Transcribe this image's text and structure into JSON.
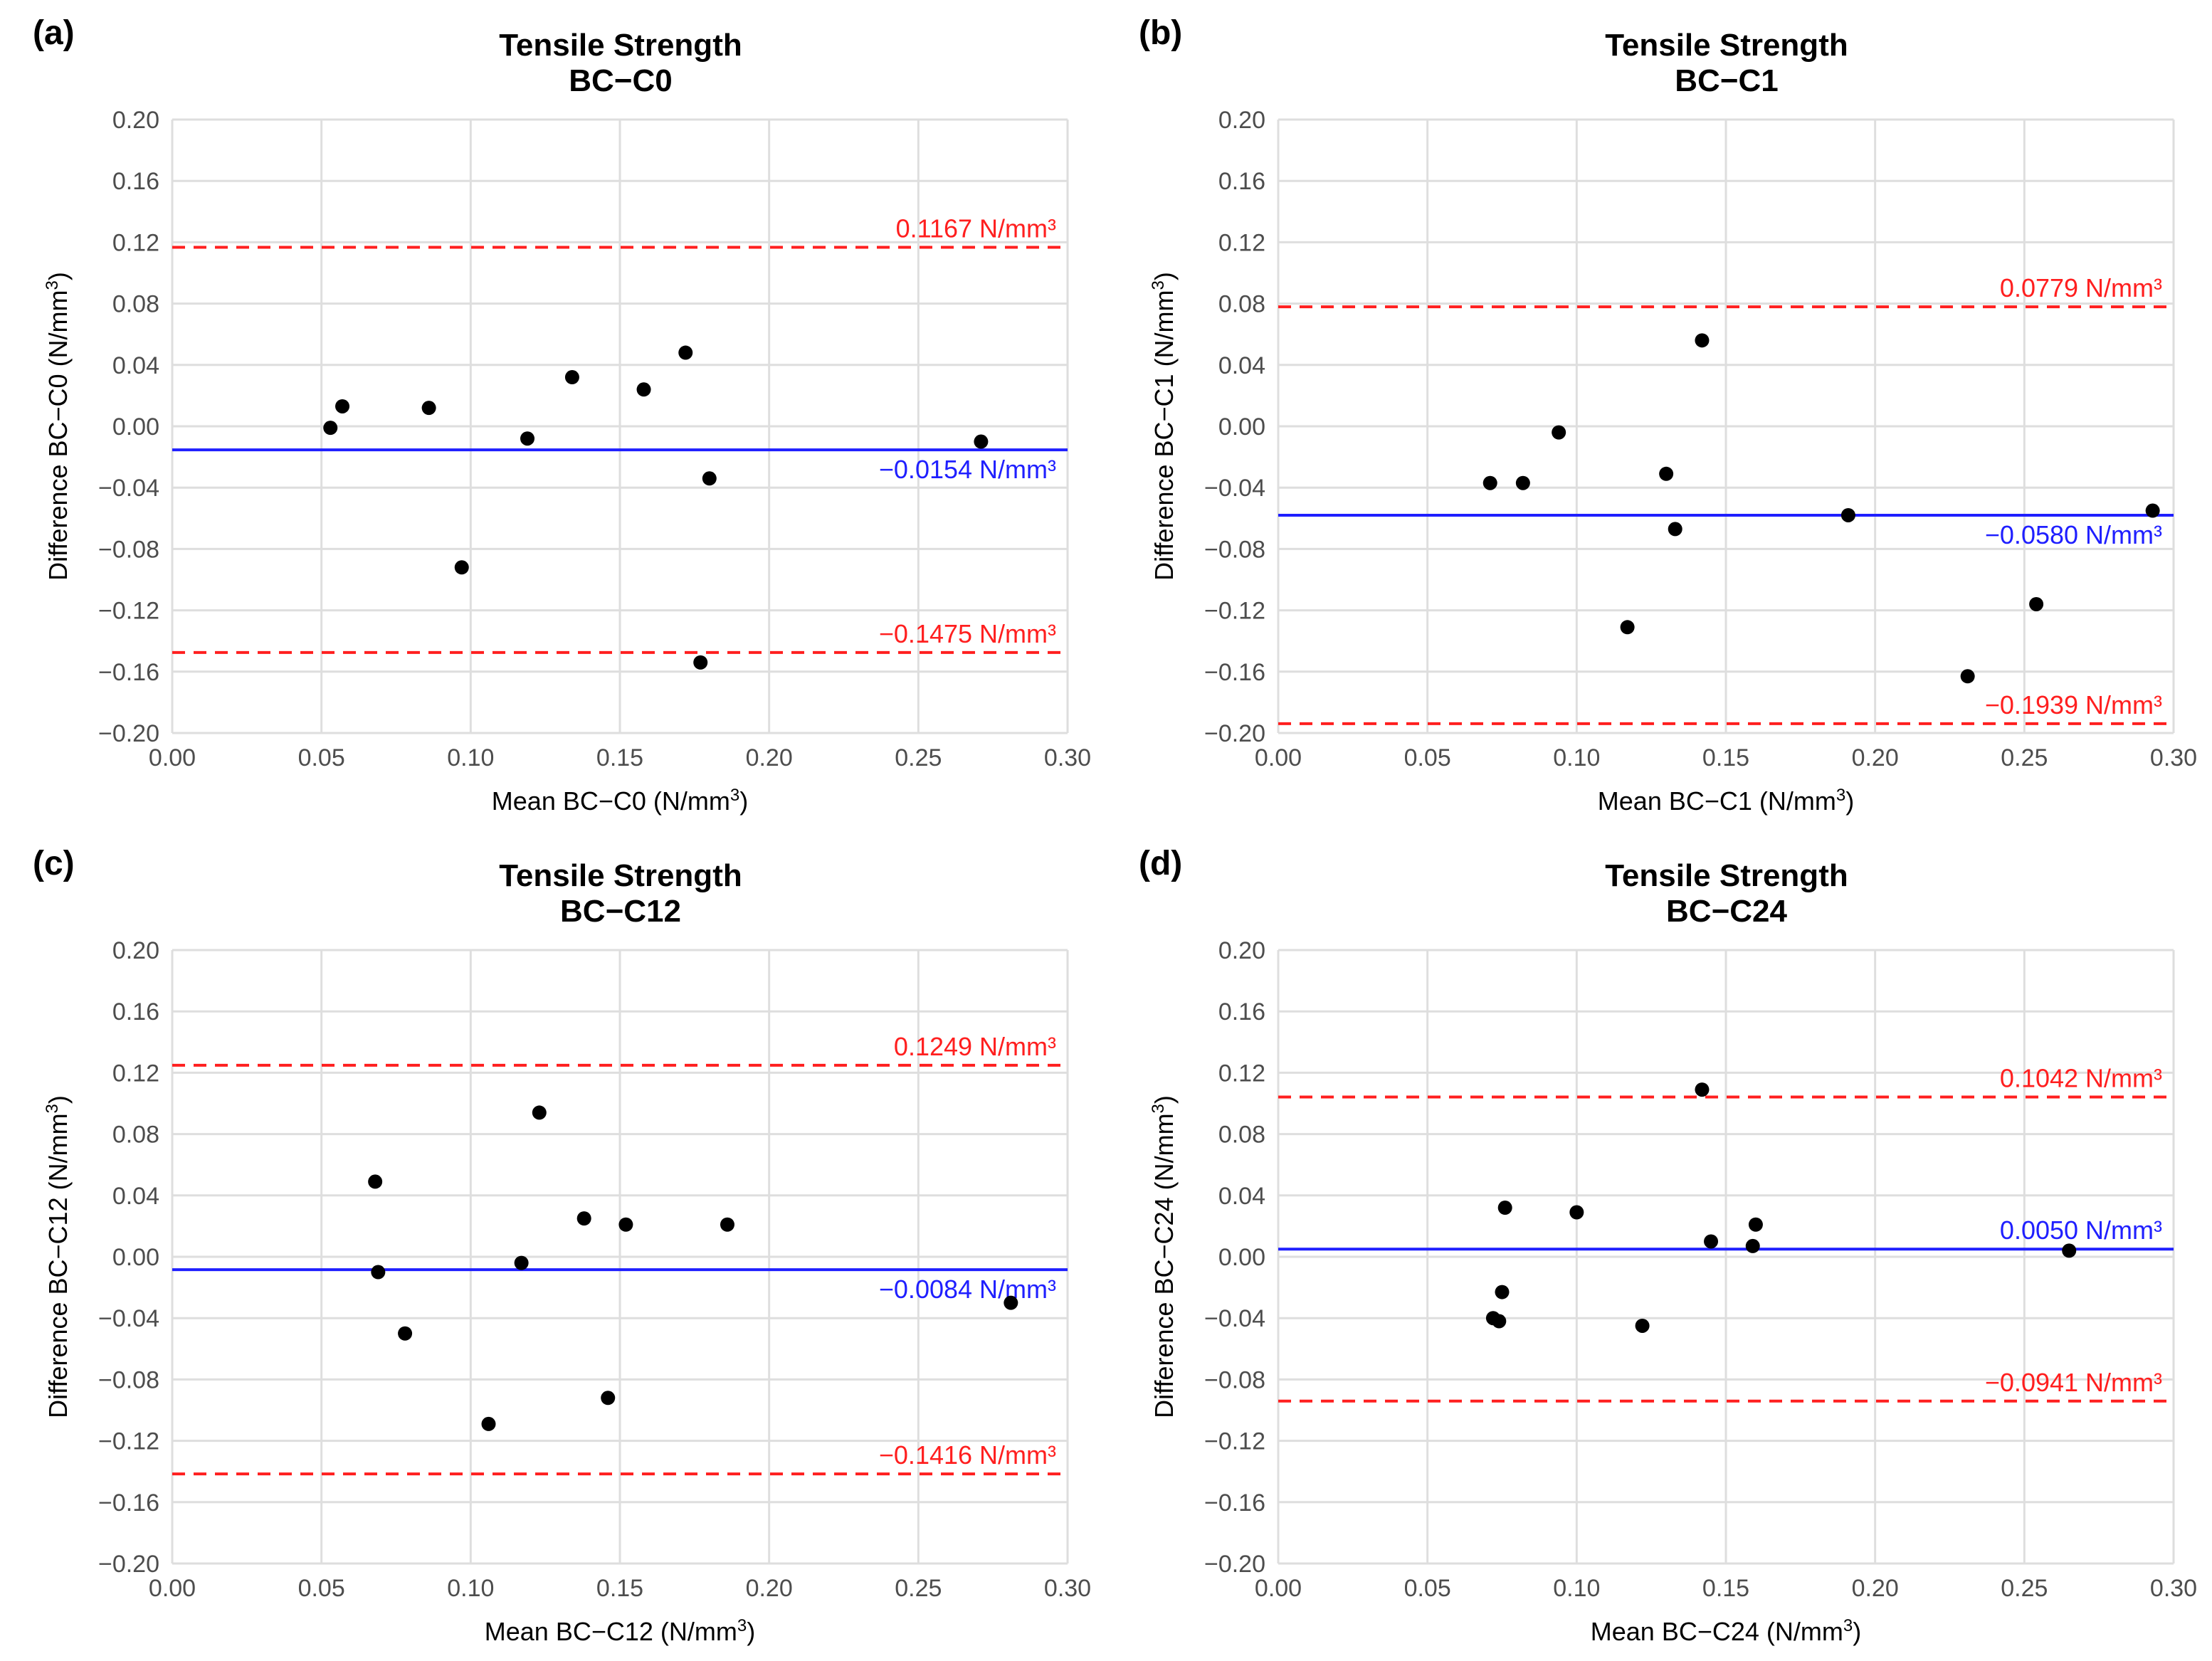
{
  "chart_data": [
    {
      "type": "scatter",
      "panel_label": "(a)",
      "title": "Tensile Strength",
      "subtitle": "BC−C0",
      "xlabel": "Mean BC−C0 (N/mm",
      "ylabel": "Difference BC−C0 (N/mm",
      "label_exponent": "3",
      "xlim": [
        0.0,
        0.3
      ],
      "ylim": [
        -0.2,
        0.2
      ],
      "xticks": [
        "0.00",
        "0.05",
        "0.10",
        "0.15",
        "0.20",
        "0.25",
        "0.30"
      ],
      "yticks": [
        "−0.20",
        "−0.16",
        "−0.12",
        "−0.08",
        "−0.04",
        "0.00",
        "0.04",
        "0.08",
        "0.12",
        "0.16",
        "0.20"
      ],
      "points": [
        {
          "x": 0.053,
          "y": -0.001
        },
        {
          "x": 0.057,
          "y": 0.013
        },
        {
          "x": 0.086,
          "y": 0.012
        },
        {
          "x": 0.097,
          "y": -0.092
        },
        {
          "x": 0.119,
          "y": -0.008
        },
        {
          "x": 0.134,
          "y": 0.032
        },
        {
          "x": 0.158,
          "y": 0.024
        },
        {
          "x": 0.172,
          "y": 0.048
        },
        {
          "x": 0.177,
          "y": -0.154
        },
        {
          "x": 0.18,
          "y": -0.034
        },
        {
          "x": 0.271,
          "y": -0.01
        }
      ],
      "mean_line": {
        "value": -0.0154,
        "label": "−0.0154 N/mm³",
        "color": "#1f1fff"
      },
      "upper_loa": {
        "value": 0.1167,
        "label": "0.1167 N/mm³",
        "color": "#ff1f1f"
      },
      "lower_loa": {
        "value": -0.1475,
        "label": "−0.1475 N/mm³",
        "color": "#ff1f1f"
      }
    },
    {
      "type": "scatter",
      "panel_label": "(b)",
      "title": "Tensile Strength",
      "subtitle": "BC−C1",
      "xlabel": "Mean BC−C1 (N/mm",
      "ylabel": "Difference BC−C1 (N/mm",
      "label_exponent": "3",
      "xlim": [
        0.0,
        0.3
      ],
      "ylim": [
        -0.2,
        0.2
      ],
      "xticks": [
        "0.00",
        "0.05",
        "0.10",
        "0.15",
        "0.20",
        "0.25",
        "0.30"
      ],
      "yticks": [
        "−0.20",
        "−0.16",
        "−0.12",
        "−0.08",
        "−0.04",
        "0.00",
        "0.04",
        "0.08",
        "0.12",
        "0.16",
        "0.20"
      ],
      "points": [
        {
          "x": 0.071,
          "y": -0.037
        },
        {
          "x": 0.082,
          "y": -0.037
        },
        {
          "x": 0.094,
          "y": -0.004
        },
        {
          "x": 0.117,
          "y": -0.131
        },
        {
          "x": 0.13,
          "y": -0.031
        },
        {
          "x": 0.133,
          "y": -0.067
        },
        {
          "x": 0.142,
          "y": 0.056
        },
        {
          "x": 0.191,
          "y": -0.058
        },
        {
          "x": 0.231,
          "y": -0.163
        },
        {
          "x": 0.254,
          "y": -0.116
        },
        {
          "x": 0.293,
          "y": -0.055
        }
      ],
      "mean_line": {
        "value": -0.058,
        "label": "−0.0580 N/mm³",
        "color": "#1f1fff"
      },
      "upper_loa": {
        "value": 0.0779,
        "label": "0.0779 N/mm³",
        "color": "#ff1f1f"
      },
      "lower_loa": {
        "value": -0.1939,
        "label": "−0.1939 N/mm³",
        "color": "#ff1f1f"
      }
    },
    {
      "type": "scatter",
      "panel_label": "(c)",
      "title": "Tensile Strength",
      "subtitle": "BC−C12",
      "xlabel": "Mean BC−C12 (N/mm",
      "ylabel": "Difference BC−C12 (N/mm",
      "label_exponent": "3",
      "xlim": [
        0.0,
        0.3
      ],
      "ylim": [
        -0.2,
        0.2
      ],
      "xticks": [
        "0.00",
        "0.05",
        "0.10",
        "0.15",
        "0.20",
        "0.25",
        "0.30"
      ],
      "yticks": [
        "−0.20",
        "−0.16",
        "−0.12",
        "−0.08",
        "−0.04",
        "0.00",
        "0.04",
        "0.08",
        "0.12",
        "0.16",
        "0.20"
      ],
      "points": [
        {
          "x": 0.068,
          "y": 0.049
        },
        {
          "x": 0.069,
          "y": -0.01
        },
        {
          "x": 0.078,
          "y": -0.05
        },
        {
          "x": 0.106,
          "y": -0.109
        },
        {
          "x": 0.117,
          "y": -0.004
        },
        {
          "x": 0.123,
          "y": 0.094
        },
        {
          "x": 0.138,
          "y": 0.025
        },
        {
          "x": 0.146,
          "y": -0.092
        },
        {
          "x": 0.152,
          "y": 0.021
        },
        {
          "x": 0.186,
          "y": 0.021
        },
        {
          "x": 0.281,
          "y": -0.03
        }
      ],
      "mean_line": {
        "value": -0.0084,
        "label": "−0.0084 N/mm³",
        "color": "#1f1fff"
      },
      "upper_loa": {
        "value": 0.1249,
        "label": "0.1249 N/mm³",
        "color": "#ff1f1f"
      },
      "lower_loa": {
        "value": -0.1416,
        "label": "−0.1416 N/mm³",
        "color": "#ff1f1f"
      }
    },
    {
      "type": "scatter",
      "panel_label": "(d)",
      "title": "Tensile Strength",
      "subtitle": "BC−C24",
      "xlabel": "Mean BC−C24 (N/mm",
      "ylabel": "Difference BC−C24 (N/mm",
      "label_exponent": "3",
      "xlim": [
        0.0,
        0.3
      ],
      "ylim": [
        -0.2,
        0.2
      ],
      "xticks": [
        "0.00",
        "0.05",
        "0.10",
        "0.15",
        "0.20",
        "0.25",
        "0.30"
      ],
      "yticks": [
        "−0.20",
        "−0.16",
        "−0.12",
        "−0.08",
        "−0.04",
        "0.00",
        "0.04",
        "0.08",
        "0.12",
        "0.16",
        "0.20"
      ],
      "points": [
        {
          "x": 0.072,
          "y": -0.04
        },
        {
          "x": 0.074,
          "y": -0.042
        },
        {
          "x": 0.075,
          "y": -0.023
        },
        {
          "x": 0.076,
          "y": 0.032
        },
        {
          "x": 0.1,
          "y": 0.029
        },
        {
          "x": 0.122,
          "y": -0.045
        },
        {
          "x": 0.142,
          "y": 0.109
        },
        {
          "x": 0.145,
          "y": 0.01
        },
        {
          "x": 0.159,
          "y": 0.007
        },
        {
          "x": 0.16,
          "y": 0.021
        },
        {
          "x": 0.265,
          "y": 0.004
        }
      ],
      "mean_line": {
        "value": 0.005,
        "label": "0.0050 N/mm³",
        "color": "#1f1fff"
      },
      "upper_loa": {
        "value": 0.1042,
        "label": "0.1042 N/mm³",
        "color": "#ff1f1f"
      },
      "lower_loa": {
        "value": -0.0941,
        "label": "−0.0941 N/mm³",
        "color": "#ff1f1f"
      }
    }
  ]
}
